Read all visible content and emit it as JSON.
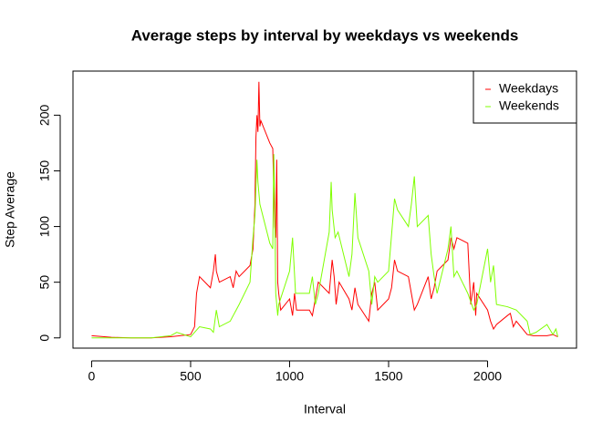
{
  "chart_data": {
    "type": "line",
    "title": "Average steps by interval by weekdays vs weekends",
    "x_label": "Interval",
    "y_label": "Step Average",
    "xlim": [
      -94.2,
      2449.2
    ],
    "ylim": [
      -9.2,
      239.6
    ],
    "xticks": [
      0,
      500,
      1000,
      1500,
      2000
    ],
    "yticks": [
      0,
      50,
      100,
      150,
      200
    ],
    "legend": "top-right",
    "series": [
      {
        "name": "Weekdays",
        "color": "#ff0000",
        "x": [
          0,
          100,
          200,
          300,
          400,
          500,
          520,
          530,
          545,
          600,
          615,
          625,
          630,
          645,
          700,
          715,
          730,
          745,
          800,
          815,
          825,
          830,
          835,
          840,
          845,
          850,
          855,
          900,
          915,
          925,
          930,
          935,
          940,
          945,
          955,
          1000,
          1015,
          1025,
          1035,
          1100,
          1115,
          1130,
          1145,
          1200,
          1210,
          1215,
          1225,
          1235,
          1250,
          1300,
          1315,
          1330,
          1345,
          1400,
          1415,
          1430,
          1445,
          1500,
          1515,
          1530,
          1545,
          1600,
          1615,
          1630,
          1645,
          1700,
          1715,
          1730,
          1745,
          1800,
          1815,
          1830,
          1845,
          1900,
          1915,
          1930,
          1940,
          1945,
          2000,
          2015,
          2030,
          2045,
          2100,
          2115,
          2130,
          2145,
          2200,
          2230,
          2300,
          2330,
          2355
        ],
        "values": [
          2,
          0.5,
          0,
          0,
          1,
          3,
          10,
          40,
          55,
          45,
          60,
          75,
          60,
          50,
          55,
          45,
          60,
          55,
          65,
          80,
          120,
          180,
          200,
          185,
          230,
          190,
          195,
          175,
          170,
          100,
          90,
          160,
          50,
          40,
          25,
          35,
          20,
          40,
          25,
          25,
          20,
          35,
          50,
          40,
          60,
          70,
          55,
          30,
          50,
          35,
          25,
          45,
          30,
          15,
          40,
          50,
          25,
          35,
          45,
          70,
          60,
          55,
          40,
          25,
          30,
          55,
          35,
          45,
          60,
          70,
          90,
          80,
          90,
          85,
          30,
          50,
          20,
          40,
          25,
          15,
          8,
          12,
          20,
          22,
          10,
          15,
          3,
          2,
          2,
          3,
          1
        ]
      },
      {
        "name": "Weekends",
        "color": "#7fff00",
        "x": [
          0,
          100,
          200,
          300,
          400,
          430,
          500,
          545,
          600,
          615,
          630,
          645,
          700,
          715,
          730,
          745,
          800,
          815,
          825,
          830,
          835,
          840,
          850,
          900,
          915,
          920,
          925,
          930,
          940,
          945,
          1000,
          1015,
          1030,
          1045,
          1100,
          1115,
          1130,
          1145,
          1200,
          1210,
          1215,
          1230,
          1245,
          1300,
          1315,
          1330,
          1345,
          1400,
          1415,
          1430,
          1445,
          1500,
          1530,
          1545,
          1600,
          1615,
          1630,
          1645,
          1700,
          1715,
          1730,
          1745,
          1800,
          1815,
          1830,
          1845,
          1900,
          1930,
          1945,
          2000,
          2015,
          2030,
          2045,
          2100,
          2145,
          2200,
          2215,
          2245,
          2300,
          2330,
          2345,
          2355
        ],
        "values": [
          0,
          0,
          0,
          0,
          2,
          5,
          1,
          10,
          8,
          5,
          25,
          10,
          15,
          20,
          25,
          30,
          50,
          90,
          110,
          135,
          160,
          140,
          120,
          85,
          80,
          165,
          120,
          40,
          20,
          30,
          60,
          90,
          40,
          40,
          40,
          55,
          30,
          40,
          95,
          140,
          115,
          90,
          95,
          55,
          75,
          130,
          90,
          60,
          30,
          55,
          50,
          60,
          125,
          115,
          100,
          120,
          145,
          100,
          110,
          75,
          55,
          40,
          80,
          100,
          55,
          60,
          40,
          25,
          30,
          80,
          50,
          65,
          30,
          28,
          25,
          15,
          3,
          5,
          12,
          3,
          8,
          1
        ]
      }
    ]
  }
}
